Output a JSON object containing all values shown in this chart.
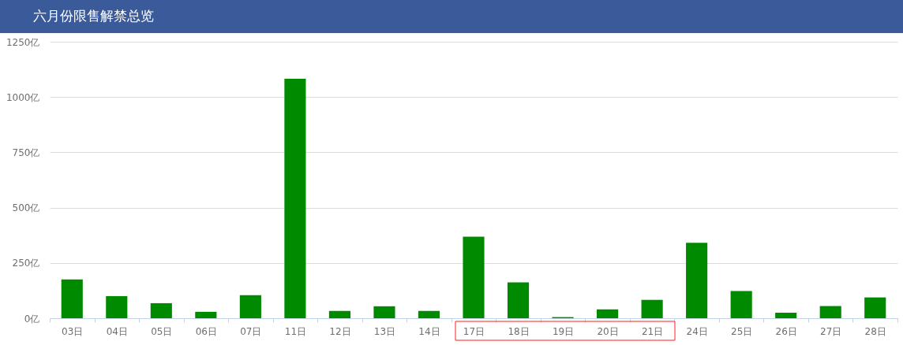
{
  "chart_data": {
    "type": "bar",
    "title": "六月份限售解禁总览",
    "categories": [
      "03日",
      "04日",
      "05日",
      "06日",
      "07日",
      "11日",
      "12日",
      "13日",
      "14日",
      "17日",
      "18日",
      "19日",
      "20日",
      "21日",
      "24日",
      "25日",
      "26日",
      "27日",
      "28日"
    ],
    "values": [
      175,
      100,
      68,
      29,
      104,
      1083,
      33,
      54,
      33,
      369,
      162,
      5,
      40,
      83,
      341,
      123,
      25,
      55,
      94
    ],
    "color": "#008a00",
    "ylim": [
      0,
      1250
    ],
    "yticks": [
      {
        "value": 0,
        "label": "0亿"
      },
      {
        "value": 250,
        "label": "250亿"
      },
      {
        "value": 500,
        "label": "500亿"
      },
      {
        "value": 750,
        "label": "750亿"
      },
      {
        "value": 1000,
        "label": "1000亿"
      },
      {
        "value": 1250,
        "label": "1250亿"
      }
    ],
    "grid": "y"
  }
}
